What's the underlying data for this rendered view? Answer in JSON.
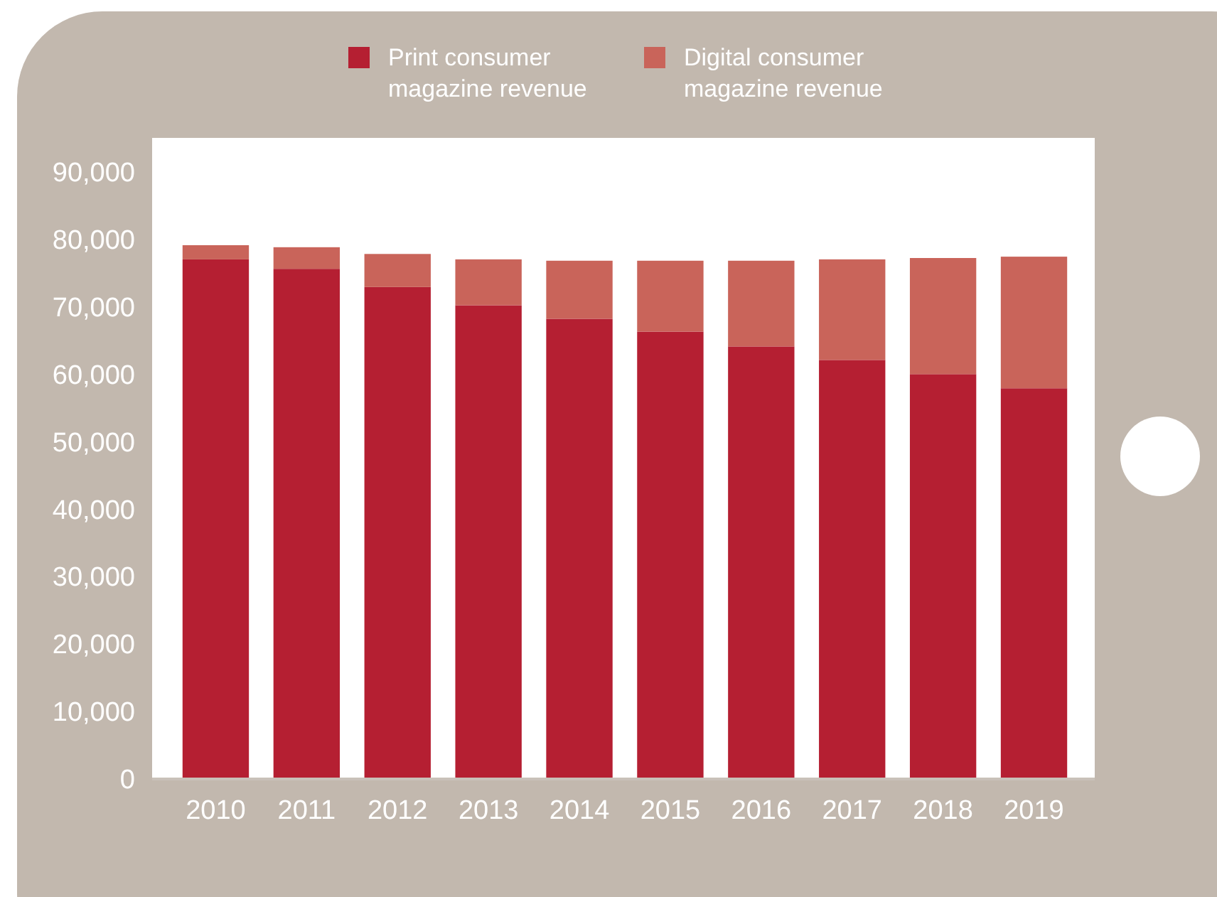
{
  "chart_data": {
    "type": "bar",
    "stacked": true,
    "categories": [
      "2010",
      "2011",
      "2012",
      "2013",
      "2014",
      "2015",
      "2016",
      "2017",
      "2018",
      "2019"
    ],
    "series": [
      {
        "name": "Print consumer magazine revenue",
        "color": "#b51f32",
        "values": [
          77000,
          75600,
          72900,
          70200,
          68200,
          66300,
          64100,
          62100,
          60000,
          57900
        ]
      },
      {
        "name": "Digital consumer magazine revenue",
        "color": "#c9645a",
        "values": [
          2100,
          3200,
          4900,
          6800,
          8600,
          10500,
          12700,
          14900,
          17200,
          19500
        ]
      }
    ],
    "ylim": [
      0,
      95000
    ],
    "yticks": [
      {
        "value": 0,
        "label": "0"
      },
      {
        "value": 10000,
        "label": "10,000"
      },
      {
        "value": 20000,
        "label": "20,000"
      },
      {
        "value": 30000,
        "label": "30,000"
      },
      {
        "value": 40000,
        "label": "40,000"
      },
      {
        "value": 50000,
        "label": "50,000"
      },
      {
        "value": 60000,
        "label": "60,000"
      },
      {
        "value": 70000,
        "label": "70,000"
      },
      {
        "value": 80000,
        "label": "80,000"
      },
      {
        "value": 90000,
        "label": "90,000"
      }
    ],
    "grid": false,
    "legend": "top"
  }
}
